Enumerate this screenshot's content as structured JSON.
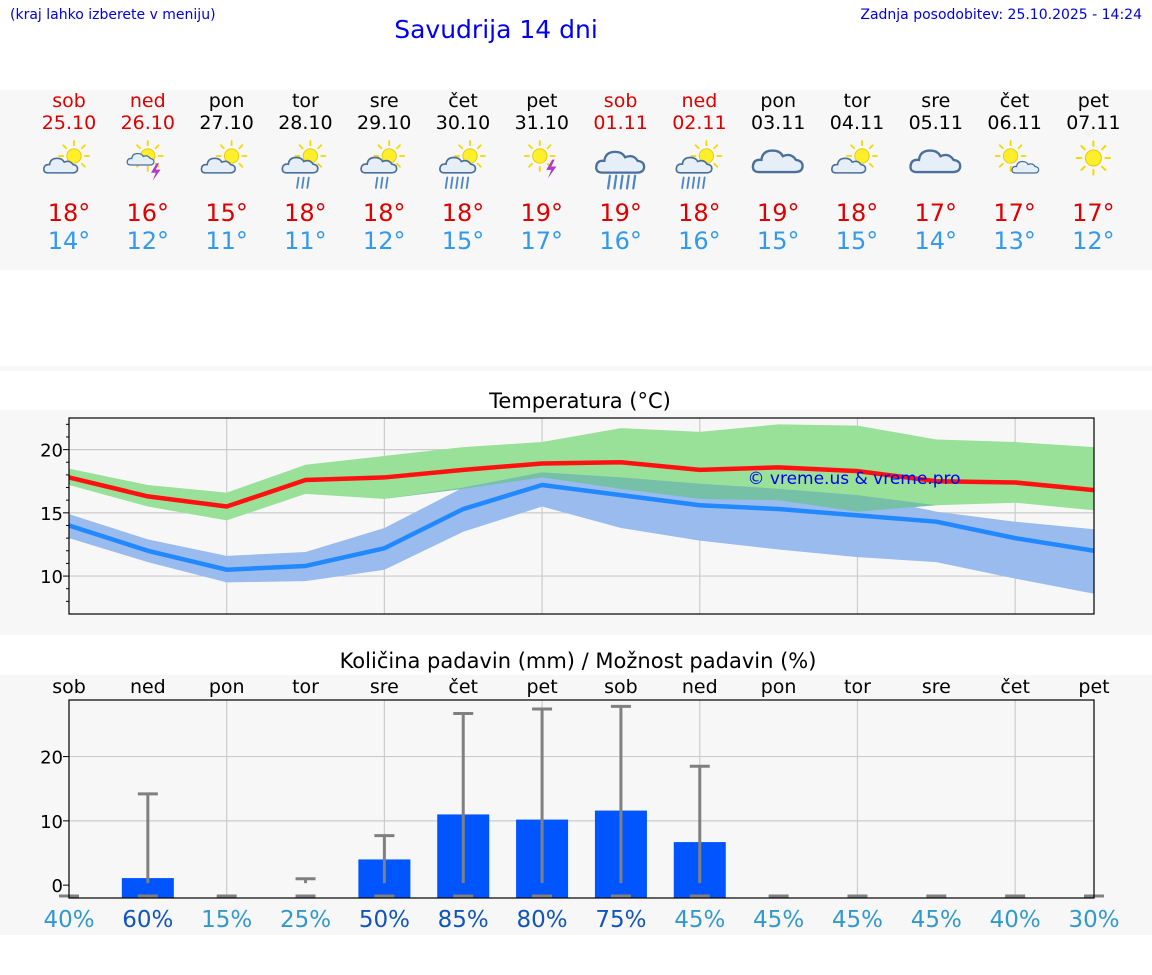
{
  "header": {
    "menu_hint": "(kraj lahko izberete v meniju)",
    "title": "Savudrija 14 dni",
    "last_update": "Zadnja posodobitev: 25.10.2025 - 14:24"
  },
  "colors": {
    "weekend": "#dd0000",
    "weekday": "#000000",
    "temp_max": "#dd0000",
    "temp_min": "#3399ee",
    "max_line": "#ff1111",
    "min_line": "#2288ff",
    "max_band": "#99e099",
    "min_band": "#99bbee",
    "overlap_band": "#77c0a8",
    "precip_bar": "#0055ff",
    "error_bar": "#808080",
    "prob_dark": "#1155bb",
    "prob_light": "#3399cc",
    "watermark": "#0000ee"
  },
  "days": [
    {
      "dow": "sob",
      "date": "25.10",
      "weekend": true,
      "icon": "partly-cloudy-icon",
      "tmax": "18°",
      "tmin": "14°"
    },
    {
      "dow": "ned",
      "date": "26.10",
      "weekend": true,
      "icon": "thunderstorm-icon",
      "tmax": "16°",
      "tmin": "12°"
    },
    {
      "dow": "pon",
      "date": "27.10",
      "weekend": false,
      "icon": "partly-cloudy-icon",
      "tmax": "15°",
      "tmin": "11°"
    },
    {
      "dow": "tor",
      "date": "28.10",
      "weekend": false,
      "icon": "sun-cloud-rain-icon",
      "tmax": "18°",
      "tmin": "11°"
    },
    {
      "dow": "sre",
      "date": "29.10",
      "weekend": false,
      "icon": "sun-cloud-rain-icon",
      "tmax": "18°",
      "tmin": "12°"
    },
    {
      "dow": "čet",
      "date": "30.10",
      "weekend": false,
      "icon": "sun-cloud-heavy-rain-icon",
      "tmax": "18°",
      "tmin": "15°"
    },
    {
      "dow": "pet",
      "date": "31.10",
      "weekend": false,
      "icon": "sun-thunder-icon",
      "tmax": "19°",
      "tmin": "17°"
    },
    {
      "dow": "sob",
      "date": "01.11",
      "weekend": true,
      "icon": "cloud-heavy-rain-icon",
      "tmax": "19°",
      "tmin": "16°"
    },
    {
      "dow": "ned",
      "date": "02.11",
      "weekend": true,
      "icon": "sun-cloud-heavy-rain-icon",
      "tmax": "18°",
      "tmin": "16°"
    },
    {
      "dow": "pon",
      "date": "03.11",
      "weekend": false,
      "icon": "cloudy-icon",
      "tmax": "19°",
      "tmin": "15°"
    },
    {
      "dow": "tor",
      "date": "04.11",
      "weekend": false,
      "icon": "partly-cloudy-icon",
      "tmax": "18°",
      "tmin": "15°"
    },
    {
      "dow": "sre",
      "date": "05.11",
      "weekend": false,
      "icon": "cloudy-icon",
      "tmax": "17°",
      "tmin": "14°"
    },
    {
      "dow": "čet",
      "date": "06.11",
      "weekend": false,
      "icon": "mostly-sunny-icon",
      "tmax": "17°",
      "tmin": "13°"
    },
    {
      "dow": "pet",
      "date": "07.11",
      "weekend": false,
      "icon": "sunny-icon",
      "tmax": "17°",
      "tmin": "12°"
    }
  ],
  "chart_data": [
    {
      "type": "line",
      "title": "Temperatura (°C)",
      "x": [
        "sob",
        "ned",
        "pon",
        "tor",
        "sre",
        "čet",
        "pet",
        "sob",
        "ned",
        "pon",
        "tor",
        "sre",
        "čet",
        "pet"
      ],
      "ylim": [
        7,
        22.5
      ],
      "yticks": [
        10,
        15,
        20
      ],
      "watermark": "© vreme.us & vreme.pro",
      "series": [
        {
          "name": "max",
          "values": [
            17.8,
            16.3,
            15.5,
            17.6,
            17.8,
            18.4,
            18.9,
            19.0,
            18.4,
            18.6,
            18.3,
            17.5,
            17.4,
            16.8
          ]
        },
        {
          "name": "max_band_high",
          "values": [
            18.5,
            17.2,
            16.6,
            18.8,
            19.5,
            20.2,
            20.6,
            21.7,
            21.4,
            22.0,
            21.9,
            20.8,
            20.6,
            20.2
          ]
        },
        {
          "name": "max_band_low",
          "values": [
            17.2,
            15.5,
            14.4,
            16.5,
            16.1,
            16.9,
            17.8,
            16.9,
            16.1,
            16.0,
            15.1,
            15.6,
            15.8,
            15.2
          ]
        },
        {
          "name": "min",
          "values": [
            14.0,
            12.0,
            10.5,
            10.8,
            12.2,
            15.3,
            17.2,
            16.4,
            15.6,
            15.3,
            14.8,
            14.3,
            13.0,
            12.0
          ]
        },
        {
          "name": "min_band_high",
          "values": [
            14.9,
            12.9,
            11.6,
            11.9,
            13.8,
            17.0,
            18.2,
            17.8,
            17.3,
            16.9,
            16.4,
            15.1,
            14.3,
            13.7
          ]
        },
        {
          "name": "min_band_low",
          "values": [
            13.0,
            11.1,
            9.5,
            9.6,
            10.5,
            13.5,
            15.5,
            13.8,
            12.8,
            12.1,
            11.5,
            11.1,
            9.8,
            8.6
          ]
        }
      ]
    },
    {
      "type": "bar",
      "title": "Količina padavin (mm) / Možnost padavin (%)",
      "categories": [
        "sob",
        "ned",
        "pon",
        "tor",
        "sre",
        "čet",
        "pet",
        "sob",
        "ned",
        "pon",
        "tor",
        "sre",
        "čet",
        "pet"
      ],
      "ylim": [
        -2,
        28.8
      ],
      "yticks": [
        0,
        10,
        20
      ],
      "series": [
        {
          "name": "precipitation_mm",
          "values": [
            0,
            1.1,
            0,
            0,
            4.0,
            11.0,
            10.2,
            11.6,
            6.7,
            0,
            0,
            0,
            0,
            0
          ]
        },
        {
          "name": "error_high",
          "values": [
            0,
            14.2,
            0,
            1.0,
            7.7,
            26.7,
            27.4,
            27.8,
            18.5,
            0,
            0,
            0,
            0,
            0
          ]
        },
        {
          "name": "error_low",
          "values": [
            0,
            0,
            0,
            0,
            0,
            0,
            0,
            0,
            0,
            0,
            0,
            0,
            0,
            0
          ]
        }
      ],
      "probability": [
        "40%",
        "60%",
        "15%",
        "25%",
        "50%",
        "85%",
        "80%",
        "75%",
        "45%",
        "45%",
        "45%",
        "45%",
        "40%",
        "30%"
      ]
    }
  ]
}
